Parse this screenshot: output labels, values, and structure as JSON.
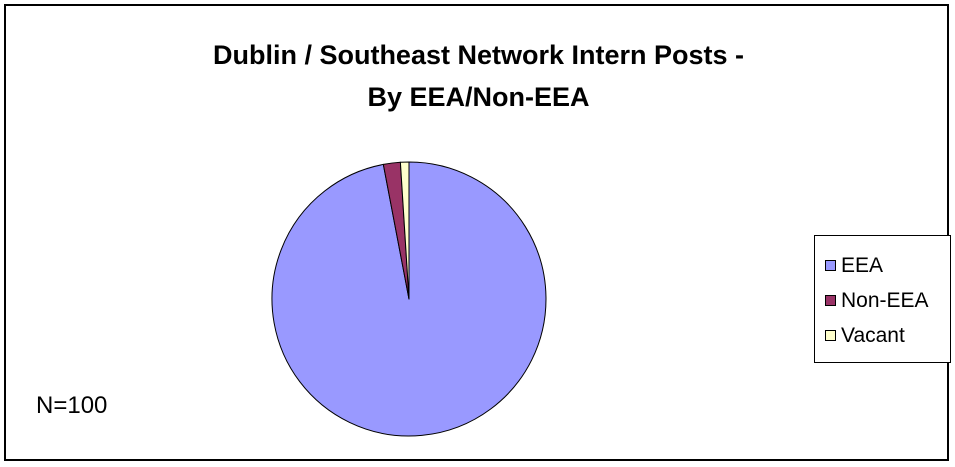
{
  "chart_data": {
    "type": "pie",
    "title_lines": [
      "Dublin / Southeast Network Intern Posts -",
      "By EEA/Non-EEA"
    ],
    "categories": [
      "EEA",
      "Non-EEA",
      "Vacant"
    ],
    "values": [
      97,
      2,
      1
    ],
    "colors": [
      "#9999FF",
      "#993366",
      "#FFFFCC"
    ],
    "legend_position": "right",
    "annotation": "N=100"
  }
}
